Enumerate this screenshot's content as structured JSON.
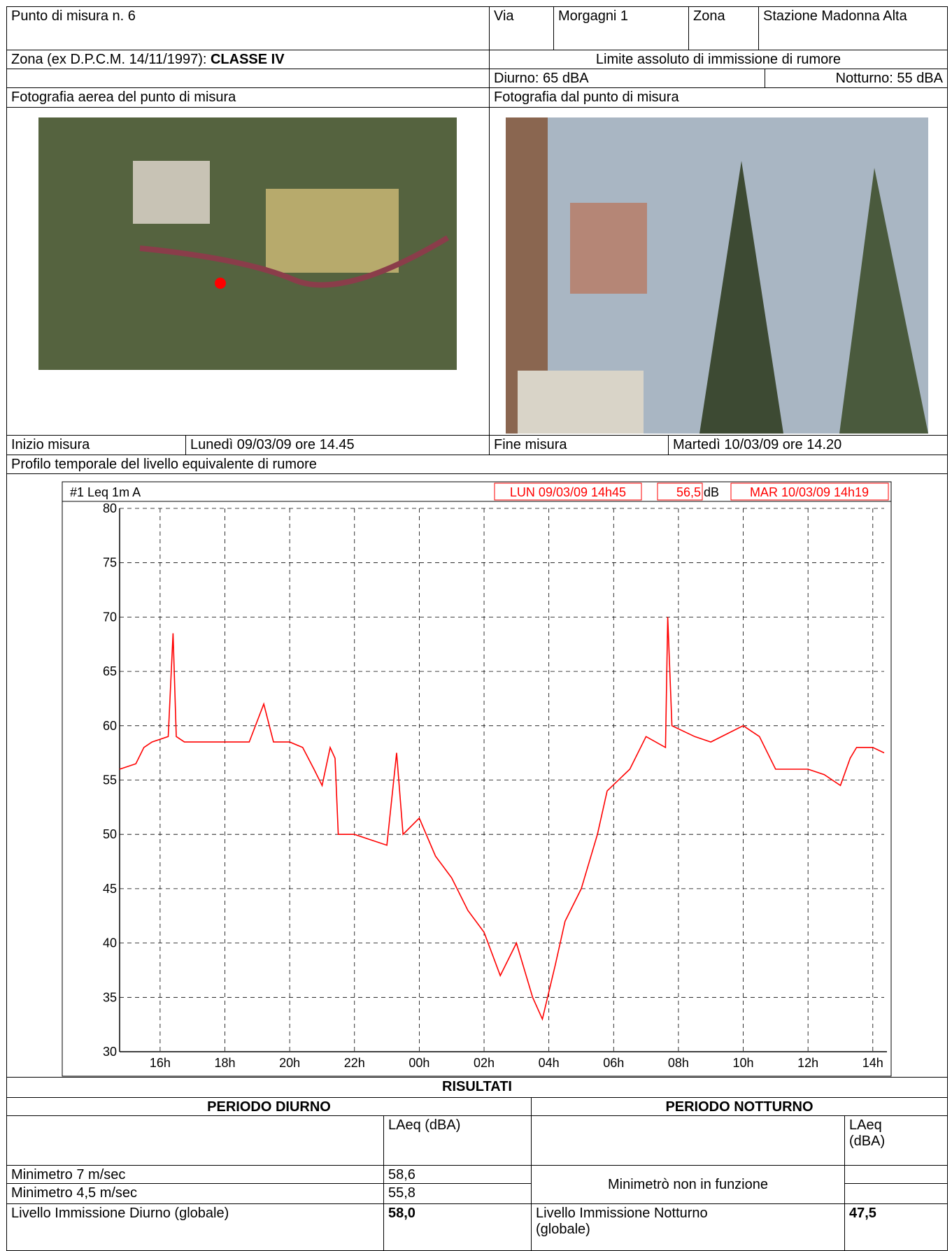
{
  "header": {
    "punto": "Punto di misura n. 6",
    "via_label": "Via",
    "via": "Morgagni 1",
    "zona_label": "Zona",
    "zona": "Stazione Madonna Alta",
    "classe_label": "Zona (ex D.P.C.M. 14/11/1997):",
    "classe": "CLASSE IV",
    "limite_title": "Limite assoluto di immissione di rumore",
    "diurno": "Diurno: 65 dBA",
    "notturno": "Notturno: 55 dBA",
    "foto_aerea": "Fotografia aerea del punto di misura",
    "foto_punto": "Fotografia dal punto di misura",
    "inizio_label": "Inizio misura",
    "inizio": "Lunedì 09/03/09 ore 14.45",
    "fine_label": "Fine misura",
    "fine": "Martedì 10/03/09 ore 14.20",
    "profilo": "Profilo temporale del livello equivalente di rumore"
  },
  "chart_data": {
    "type": "line",
    "header_left": "#1 Leq 1m A",
    "start": "LUN 09/03/09 14h45",
    "avg": "56,5",
    "unit": "dB",
    "end": "MAR 10/03/09 14h19",
    "color": "#ff0000",
    "grid": true,
    "x": [
      14.75,
      15.25,
      15.5,
      15.75,
      16.25,
      16.4,
      16.5,
      16.75,
      17.25,
      17.75,
      18.25,
      18.75,
      19.2,
      19.5,
      20.0,
      20.4,
      20.75,
      21.0,
      21.25,
      21.4,
      21.5,
      22.0,
      22.5,
      23.0,
      23.3,
      23.5,
      24.0,
      24.5,
      25.0,
      25.5,
      26.0,
      26.5,
      27.0,
      27.5,
      27.8,
      28.2,
      28.5,
      29.0,
      29.5,
      29.8,
      30.5,
      31.0,
      31.6,
      31.67,
      31.8,
      32.5,
      33.0,
      34.0,
      34.5,
      35.0,
      35.5,
      36.0,
      36.5,
      37.0,
      37.3,
      37.5,
      38.0,
      38.35
    ],
    "values": [
      56,
      56.5,
      58,
      58.5,
      59,
      68.5,
      59,
      58.5,
      58.5,
      58.5,
      58.5,
      58.5,
      62,
      58.5,
      58.5,
      58,
      56,
      54.5,
      58,
      57,
      50,
      50,
      49.5,
      49,
      57.5,
      50,
      51.5,
      48,
      46,
      43,
      41,
      37,
      40,
      35,
      33,
      38,
      42,
      45,
      50,
      54,
      56,
      59,
      58,
      70,
      60,
      59,
      58.5,
      60,
      59,
      56,
      56,
      56,
      55.5,
      54.5,
      57,
      58,
      58,
      57.5
    ],
    "xlim": [
      14.75,
      38.35
    ],
    "ylim": [
      30,
      80
    ],
    "yticks": [
      30,
      35,
      40,
      45,
      50,
      55,
      60,
      65,
      70,
      75,
      80
    ],
    "xticks": [
      {
        "value": 16,
        "label": "16h"
      },
      {
        "value": 18,
        "label": "18h"
      },
      {
        "value": 20,
        "label": "20h"
      },
      {
        "value": 22,
        "label": "22h"
      },
      {
        "value": 24,
        "label": "00h"
      },
      {
        "value": 26,
        "label": "02h"
      },
      {
        "value": 28,
        "label": "04h"
      },
      {
        "value": 30,
        "label": "06h"
      },
      {
        "value": 32,
        "label": "08h"
      },
      {
        "value": 34,
        "label": "10h"
      },
      {
        "value": 36,
        "label": "12h"
      },
      {
        "value": 38,
        "label": "14h"
      }
    ]
  },
  "results": {
    "title": "RISULTATI",
    "diurno_title": "PERIODO DIURNO",
    "notturno_title": "PERIODO NOTTURNO",
    "col_header_d": "LAeq (dBA)",
    "col_header_n": "LAeq (dBA)",
    "rows": [
      [
        "Minimetro 7 m/sec",
        "58,6"
      ],
      [
        "Minimetro 4,5 m/sec",
        "55,8"
      ]
    ],
    "minimetro_note": "Minimetrò non in funzione",
    "diurno_label": "Livello Immissione Diurno (globale)",
    "diurno_value": "58,0",
    "notturno_label": "Livello Immissione Notturno (globale)",
    "notturno_value": "47,5"
  }
}
